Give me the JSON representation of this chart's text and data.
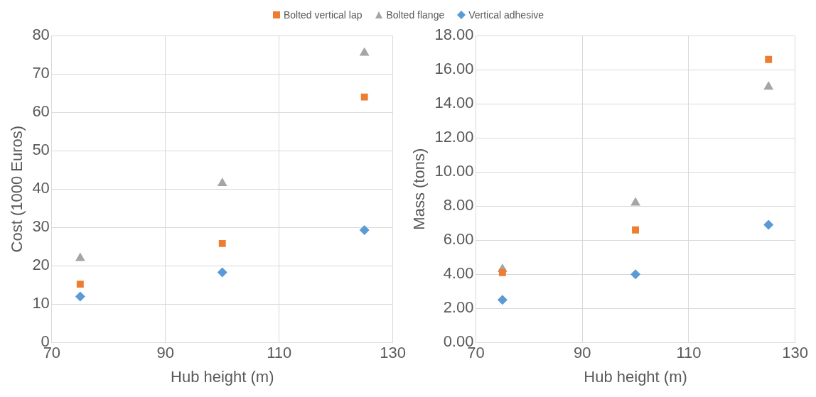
{
  "chart_data": [
    {
      "type": "scatter",
      "xlabel": "Hub height (m)",
      "ylabel": "Cost (1000 Euros)",
      "x": [
        75,
        100,
        125
      ],
      "xlim": [
        70,
        130
      ],
      "xticks": [
        70,
        90,
        110,
        130
      ],
      "ylim": [
        0,
        80
      ],
      "yticks": [
        0,
        10,
        20,
        30,
        40,
        50,
        60,
        70,
        80
      ],
      "grid": true,
      "legend": "top",
      "series": [
        {
          "name": "Bolted vertical lap",
          "color": "#ed7d31",
          "marker": "square",
          "values": [
            15.2,
            25.8,
            64
          ]
        },
        {
          "name": "Bolted flange",
          "color": "#a5a5a5",
          "marker": "triangle",
          "values": [
            22,
            41.5,
            75.5
          ]
        },
        {
          "name": "Vertical adhesive",
          "color": "#5b9bd5",
          "marker": "diamond",
          "values": [
            12,
            18.3,
            29.3
          ]
        }
      ]
    },
    {
      "type": "scatter",
      "xlabel": "Hub height (m)",
      "ylabel": "Mass (tons)",
      "x": [
        75,
        100,
        125
      ],
      "xlim": [
        70,
        130
      ],
      "xticks": [
        70,
        90,
        110,
        130
      ],
      "ylim": [
        0,
        18
      ],
      "yticks": [
        {
          "value": 0,
          "label": "0.00"
        },
        {
          "value": 2,
          "label": "2.00"
        },
        {
          "value": 4,
          "label": "4.00"
        },
        {
          "value": 6,
          "label": "6.00"
        },
        {
          "value": 8,
          "label": "8.00"
        },
        {
          "value": 10,
          "label": "10.00"
        },
        {
          "value": 12,
          "label": "12.00"
        },
        {
          "value": 14,
          "label": "14.00"
        },
        {
          "value": 16,
          "label": "16.00"
        },
        {
          "value": 18,
          "label": "18.00"
        }
      ],
      "grid": true,
      "series": [
        {
          "color": "#ed7d31",
          "marker": "square",
          "values": [
            4.1,
            6.6,
            16.6
          ]
        },
        {
          "color": "#a5a5a5",
          "marker": "triangle",
          "values": [
            4.3,
            8.2,
            15.0
          ]
        },
        {
          "color": "#5b9bd5",
          "marker": "diamond",
          "values": [
            2.5,
            4.0,
            6.9
          ]
        }
      ]
    }
  ]
}
